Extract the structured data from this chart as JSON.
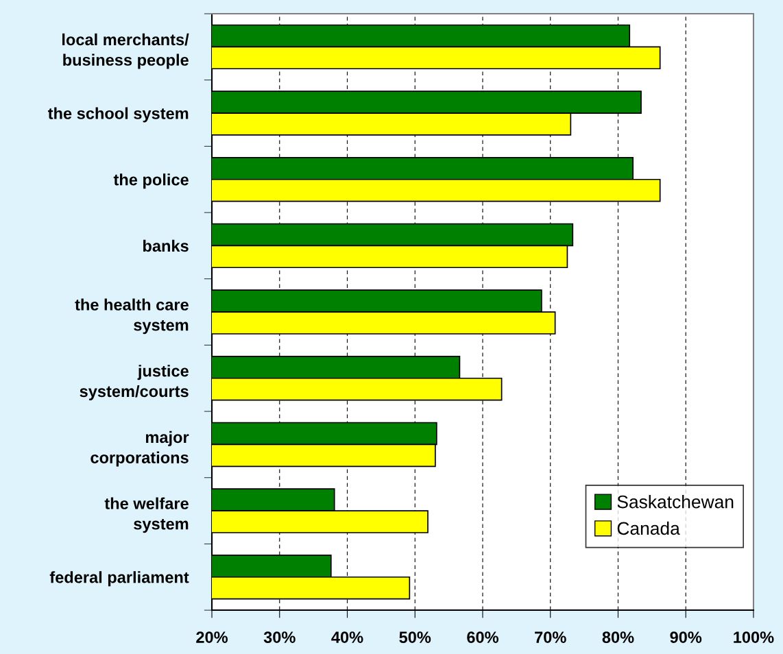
{
  "chart_data": {
    "type": "bar",
    "orientation": "horizontal",
    "categories": [
      "local merchants/\nbusiness people",
      "the school system",
      "the police",
      "banks",
      "the health care\nsystem",
      "justice\nsystem/courts",
      "major\ncorporations",
      "the welfare\nsystem",
      "federal parliament"
    ],
    "series": [
      {
        "name": "Saskatchewan",
        "color": "#008000",
        "values": [
          81.7,
          83.4,
          82.2,
          73.3,
          68.7,
          56.6,
          53.2,
          38.1,
          37.6
        ]
      },
      {
        "name": "Canada",
        "color": "#ffff00",
        "values": [
          86.2,
          73.0,
          86.2,
          72.5,
          70.7,
          62.8,
          53.0,
          51.9,
          49.2
        ]
      }
    ],
    "xlim": [
      20,
      100
    ],
    "xticks": [
      {
        "value": 20,
        "label": "20%"
      },
      {
        "value": 30,
        "label": "30%"
      },
      {
        "value": 40,
        "label": "40%"
      },
      {
        "value": 50,
        "label": "50%"
      },
      {
        "value": 60,
        "label": "60%"
      },
      {
        "value": 70,
        "label": "70%"
      },
      {
        "value": 80,
        "label": "80%"
      },
      {
        "value": 90,
        "label": "90%"
      },
      {
        "value": 100,
        "label": "100%"
      }
    ],
    "grid": "x",
    "legend": "bottom right"
  }
}
